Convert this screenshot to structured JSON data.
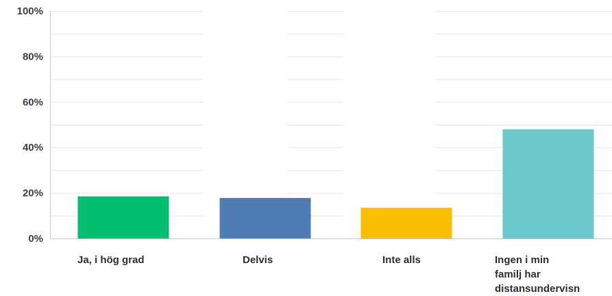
{
  "chart_data": {
    "type": "bar",
    "categories": [
      [
        "Ja, i hög grad"
      ],
      [
        "Delvis"
      ],
      [
        "Inte alls"
      ],
      [
        "Ingen i min",
        "familj har",
        "distansundervisn"
      ]
    ],
    "values": [
      18.5,
      17.8,
      13.5,
      48.0
    ],
    "colors": [
      "#00bf6f",
      "#507cb6",
      "#f9be00",
      "#6bc8cd"
    ],
    "yticks": [
      "0%",
      "20%",
      "40%",
      "60%",
      "80%",
      "100%"
    ],
    "ylim": [
      0,
      100
    ],
    "grid": true,
    "title": "",
    "xlabel": "",
    "ylabel": ""
  }
}
